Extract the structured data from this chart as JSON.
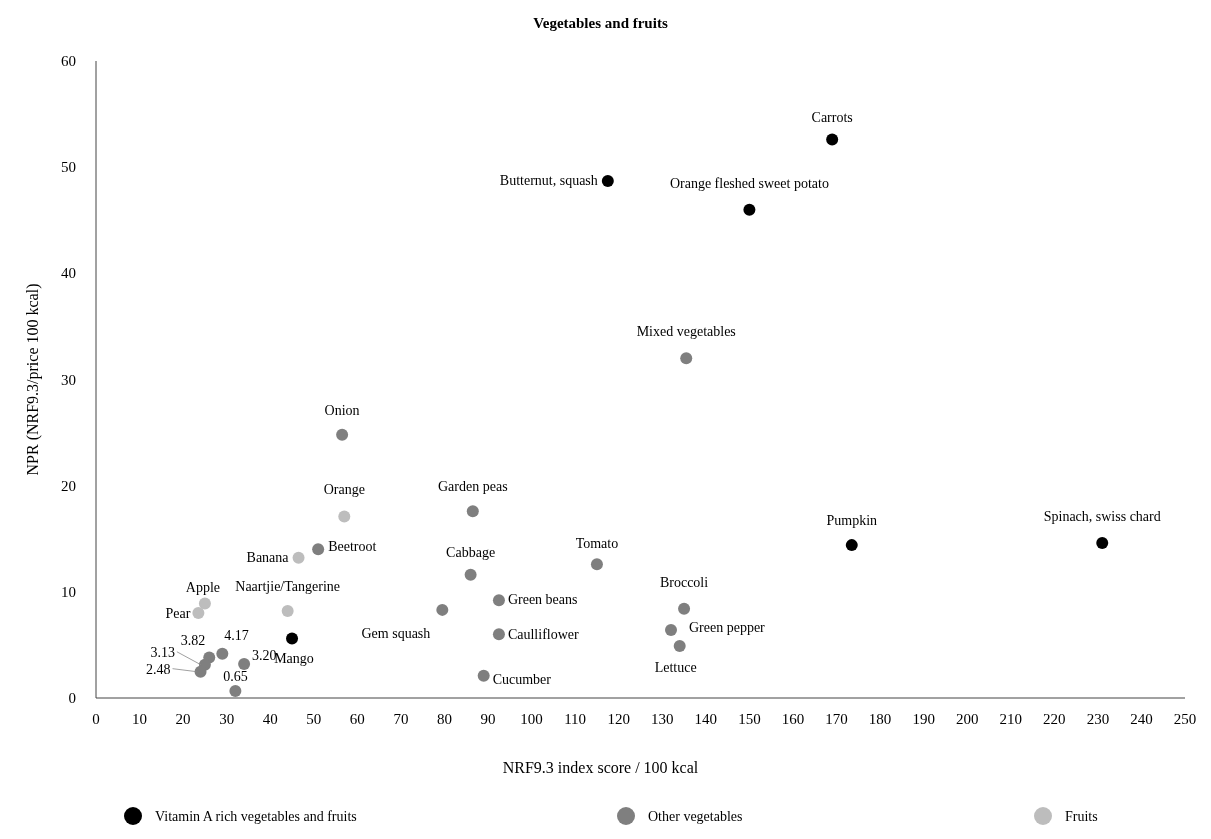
{
  "chart_data": {
    "type": "scatter",
    "title": "Vegetables and fruits",
    "xlabel": "NRF9.3 index score / 100 kcal",
    "ylabel": "NPR  (NRF9.3/price 100 kcal)",
    "xlim": [
      0,
      250
    ],
    "xticks": [
      0,
      10,
      20,
      30,
      40,
      50,
      60,
      70,
      80,
      90,
      100,
      110,
      120,
      130,
      140,
      150,
      160,
      170,
      180,
      190,
      200,
      210,
      220,
      230,
      240,
      250
    ],
    "ylim": [
      0,
      60
    ],
    "yticks": [
      0,
      10,
      20,
      30,
      40,
      50,
      60
    ],
    "grid": false,
    "legend": "bottom",
    "marker": "circle",
    "series": [
      {
        "name": "Vitamin A rich vegetables and fruits",
        "color": "#000000",
        "x": [
          169,
          117.5,
          150,
          173.5,
          231,
          45
        ],
        "values": [
          52.6,
          48.7,
          46,
          14.4,
          14.6,
          5.6
        ]
      },
      {
        "name": "Other vegetables",
        "color": "#7f7f7f",
        "x": [
          135.5,
          56.5,
          86.5,
          51,
          86,
          115,
          135,
          92.5,
          79.5,
          92.5,
          132,
          134,
          89,
          26,
          29,
          34,
          25,
          24,
          32
        ],
        "values": [
          32,
          24.8,
          17.6,
          14,
          11.6,
          12.6,
          8.4,
          9.2,
          8.3,
          6,
          6.4,
          4.9,
          2.1,
          3.82,
          4.17,
          3.2,
          3.13,
          2.48,
          0.65
        ],
        "value_labels": [
          null,
          null,
          null,
          null,
          null,
          null,
          null,
          null,
          null,
          null,
          null,
          null,
          null,
          "3.82",
          "4.17",
          "3.20",
          "3.13",
          "2.48",
          "0.65"
        ]
      },
      {
        "name": "Fruits",
        "color": "#bdbdbd",
        "x": [
          57,
          46.5,
          25,
          23.5,
          44
        ],
        "values": [
          17.1,
          13.2,
          8.9,
          8,
          8.2
        ]
      }
    ],
    "annotations": [
      {
        "text": "Carrots",
        "x": 169,
        "y": 52.6
      },
      {
        "text": "Butternut, squash",
        "x": 117.5,
        "y": 48.7
      },
      {
        "text": "Orange fleshed sweet potato",
        "x": 150,
        "y": 46
      },
      {
        "text": "Mixed vegetables",
        "x": 135.5,
        "y": 32
      },
      {
        "text": "Pumpkin",
        "x": 173.5,
        "y": 14.4
      },
      {
        "text": "Spinach, swiss chard",
        "x": 231,
        "y": 14.6
      },
      {
        "text": "Onion",
        "x": 56.5,
        "y": 24.8
      },
      {
        "text": "Orange",
        "x": 57,
        "y": 17.1
      },
      {
        "text": "Garden peas",
        "x": 86.5,
        "y": 17.6
      },
      {
        "text": "Banana",
        "x": 46.5,
        "y": 13.2
      },
      {
        "text": "Beetroot",
        "x": 51,
        "y": 14
      },
      {
        "text": "Cabbage",
        "x": 86,
        "y": 11.6
      },
      {
        "text": "Tomato",
        "x": 115,
        "y": 12.6
      },
      {
        "text": "Broccoli",
        "x": 135,
        "y": 8.4
      },
      {
        "text": "Apple",
        "x": 25,
        "y": 8.9
      },
      {
        "text": "Pear",
        "x": 23.5,
        "y": 8
      },
      {
        "text": "Naartjie/Tangerine",
        "x": 44,
        "y": 8.2
      },
      {
        "text": "Green beans",
        "x": 92.5,
        "y": 9.2
      },
      {
        "text": "Gem squash",
        "x": 79.5,
        "y": 8.3
      },
      {
        "text": "Caulliflower",
        "x": 92.5,
        "y": 6
      },
      {
        "text": "Green pepper",
        "x": 132,
        "y": 6.4
      },
      {
        "text": "Mango",
        "x": 45,
        "y": 5.6
      },
      {
        "text": "Lettuce",
        "x": 134,
        "y": 4.9
      },
      {
        "text": "Cucumber",
        "x": 89,
        "y": 2.1
      }
    ]
  }
}
